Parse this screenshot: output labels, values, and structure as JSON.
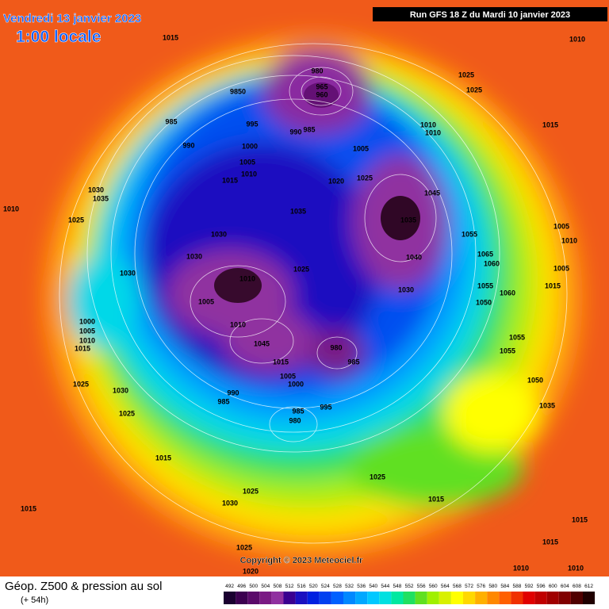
{
  "header": {
    "date": "Vendredi 13 janvier 2023",
    "time": "1:00 locale",
    "run": "Run GFS 18 Z du Mardi 10 janvier 2023"
  },
  "footer": {
    "title": "Géop. Z500 & pression au sol",
    "lead": "(+ 54h)",
    "copyright": "Copyright © 2023 Meteociel.fr"
  },
  "colorbar": {
    "labels": [
      492,
      496,
      500,
      504,
      508,
      512,
      516,
      520,
      524,
      528,
      532,
      536,
      540,
      544,
      548,
      552,
      556,
      560,
      564,
      568,
      572,
      576,
      580,
      584,
      588,
      592,
      596,
      600,
      604,
      608,
      612
    ],
    "colors": [
      "#1a0030",
      "#3c0050",
      "#5a0a6a",
      "#7a1a84",
      "#9030a0",
      "#3a0090",
      "#1a10c0",
      "#0020e0",
      "#0040f0",
      "#0060ff",
      "#0088ff",
      "#00a8ff",
      "#00c8ff",
      "#00e0e0",
      "#00e8a0",
      "#20e060",
      "#60e020",
      "#a0f000",
      "#d8f000",
      "#ffff00",
      "#ffd800",
      "#ffb000",
      "#ff8800",
      "#ff6000",
      "#f03000",
      "#e00000",
      "#c00000",
      "#a00000",
      "#800000",
      "#500000",
      "#200000"
    ]
  },
  "isobar_labels": [
    "1015",
    "1010",
    "1025",
    "1025",
    "980",
    "965",
    "960",
    "9850",
    "985",
    "995",
    "990",
    "985",
    "1010",
    "1010",
    "1015",
    "990",
    "1000",
    "1005",
    "1005",
    "1010",
    "1015",
    "1020",
    "1025",
    "1045",
    "1030",
    "1035",
    "1010",
    "1035",
    "1035",
    "1025",
    "1030",
    "1055",
    "1005",
    "1010",
    "1030",
    "1065",
    "1060",
    "1040",
    "1010",
    "1025",
    "1030",
    "1005",
    "1015",
    "1055",
    "1060",
    "1030",
    "1005",
    "1050",
    "1000",
    "1005",
    "1010",
    "1015",
    "1010",
    "1045",
    "980",
    "1055",
    "1055",
    "985",
    "1015",
    "1005",
    "1000",
    "1025",
    "1030",
    "990",
    "985",
    "1050",
    "1035",
    "985",
    "995",
    "980",
    "1025",
    "1015",
    "1025",
    "1015",
    "1025",
    "1030",
    "1015",
    "1015",
    "1015",
    "1025",
    "1020",
    "1010",
    "1010"
  ]
}
